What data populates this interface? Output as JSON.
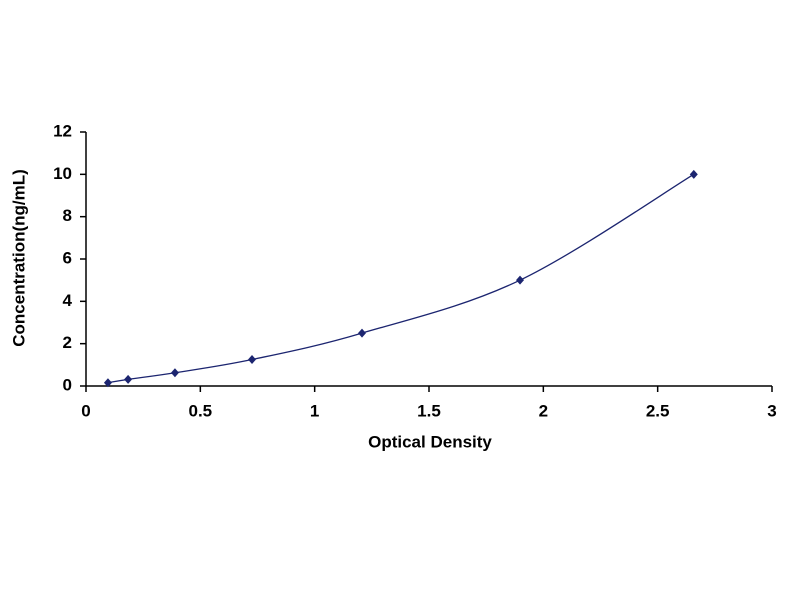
{
  "chart_data": {
    "type": "scatter",
    "title_x": "Optical Density",
    "title_y": "Concentration(ng/mL)",
    "series": [
      {
        "color": "#1c2570",
        "x": [
          0.096,
          0.184,
          0.389,
          0.726,
          1.207,
          1.898,
          2.658
        ],
        "values": [
          0.156,
          0.312,
          0.625,
          1.25,
          2.5,
          5,
          10
        ]
      }
    ],
    "smooth_line": true,
    "xlim": [
      0,
      3
    ],
    "xticks": [
      0,
      0.5,
      1,
      1.5,
      2,
      2.5,
      3
    ],
    "ylim": [
      0,
      12
    ],
    "yticks": [
      0,
      2,
      4,
      6,
      8,
      10,
      12
    ],
    "grid": false
  }
}
